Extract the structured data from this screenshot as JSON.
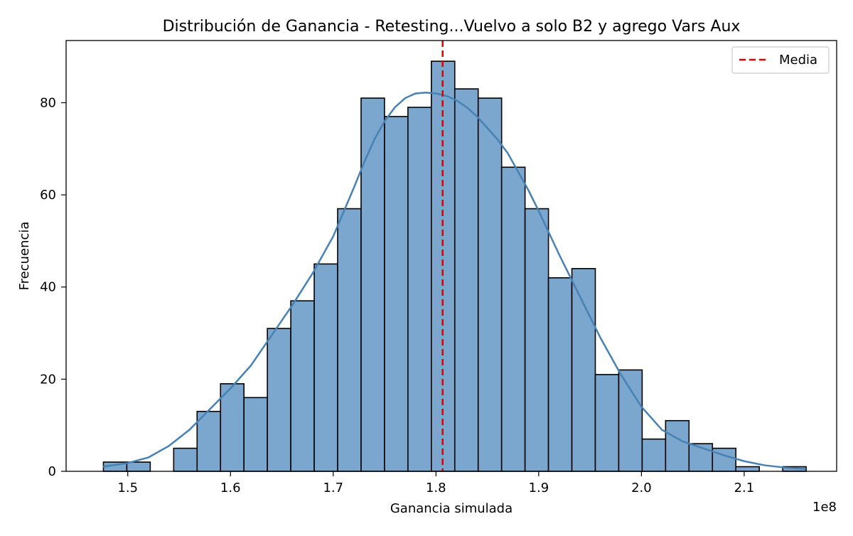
{
  "chart_data": {
    "type": "bar",
    "title": "Distribución de Ganancia - Retesting...Vuelvo a solo B2 y agrego Vars Aux",
    "xlabel": "Ganancia simulada",
    "ylabel": "Frecuencia",
    "x_offset_label": "1e8",
    "xlim": [
      1.44,
      2.19
    ],
    "ylim": [
      0,
      93.5
    ],
    "xticks": [
      1.5,
      1.6,
      1.7,
      1.8,
      1.9,
      2.0,
      2.1
    ],
    "xtick_labels": [
      "1.5",
      "1.6",
      "1.7",
      "1.8",
      "1.9",
      "2.0",
      "2.1"
    ],
    "yticks": [
      0,
      20,
      40,
      60,
      80
    ],
    "ytick_labels": [
      "0",
      "20",
      "40",
      "60",
      "80"
    ],
    "bin_edges": [
      1.4763,
      1.4991,
      1.5219,
      1.5447,
      1.5675,
      1.5903,
      1.6131,
      1.6359,
      1.6587,
      1.6815,
      1.7043,
      1.7271,
      1.7499,
      1.7727,
      1.7955,
      1.8183,
      1.8411,
      1.8639,
      1.8867,
      1.9095,
      1.9323,
      1.9551,
      1.9779,
      2.0007,
      2.0235,
      2.0463,
      2.0691,
      2.0919,
      2.1147,
      2.1375,
      2.1603
    ],
    "counts": [
      2,
      2,
      0,
      5,
      13,
      19,
      16,
      31,
      37,
      45,
      57,
      81,
      77,
      79,
      89,
      83,
      81,
      66,
      57,
      42,
      44,
      21,
      22,
      7,
      11,
      6,
      5,
      1,
      0,
      1
    ],
    "kde": {
      "x": [
        1.476,
        1.5,
        1.52,
        1.54,
        1.56,
        1.58,
        1.6,
        1.62,
        1.64,
        1.66,
        1.68,
        1.7,
        1.72,
        1.73,
        1.74,
        1.75,
        1.76,
        1.77,
        1.78,
        1.79,
        1.8,
        1.81,
        1.82,
        1.83,
        1.84,
        1.85,
        1.86,
        1.87,
        1.88,
        1.89,
        1.9,
        1.92,
        1.94,
        1.96,
        1.98,
        2.0,
        2.02,
        2.04,
        2.06,
        2.08,
        2.1,
        2.12,
        2.14,
        2.16
      ],
      "y": [
        1.0,
        1.8,
        3.0,
        5.5,
        9.0,
        13.5,
        18.0,
        23.0,
        29.5,
        36.0,
        43.0,
        51.0,
        61.5,
        67.0,
        72.0,
        76.0,
        79.0,
        81.0,
        82.0,
        82.2,
        82.0,
        81.5,
        80.5,
        79.0,
        77.0,
        74.5,
        72.0,
        69.0,
        65.0,
        61.0,
        56.5,
        47.0,
        38.0,
        29.0,
        21.0,
        14.0,
        9.0,
        6.5,
        5.0,
        3.5,
        2.2,
        1.3,
        0.8,
        0.5
      ]
    },
    "mean": 1.8065,
    "series": [
      {
        "name": "Media",
        "type": "line",
        "style": "dashed",
        "color": "#ff0000"
      }
    ],
    "legend": {
      "position": "top-right",
      "entries": [
        "Media"
      ]
    },
    "grid": false,
    "bar_color": "#7ba6cd",
    "bar_edge_color": "#000000",
    "kde_color": "#4682b4",
    "mean_color": "#e00000"
  }
}
